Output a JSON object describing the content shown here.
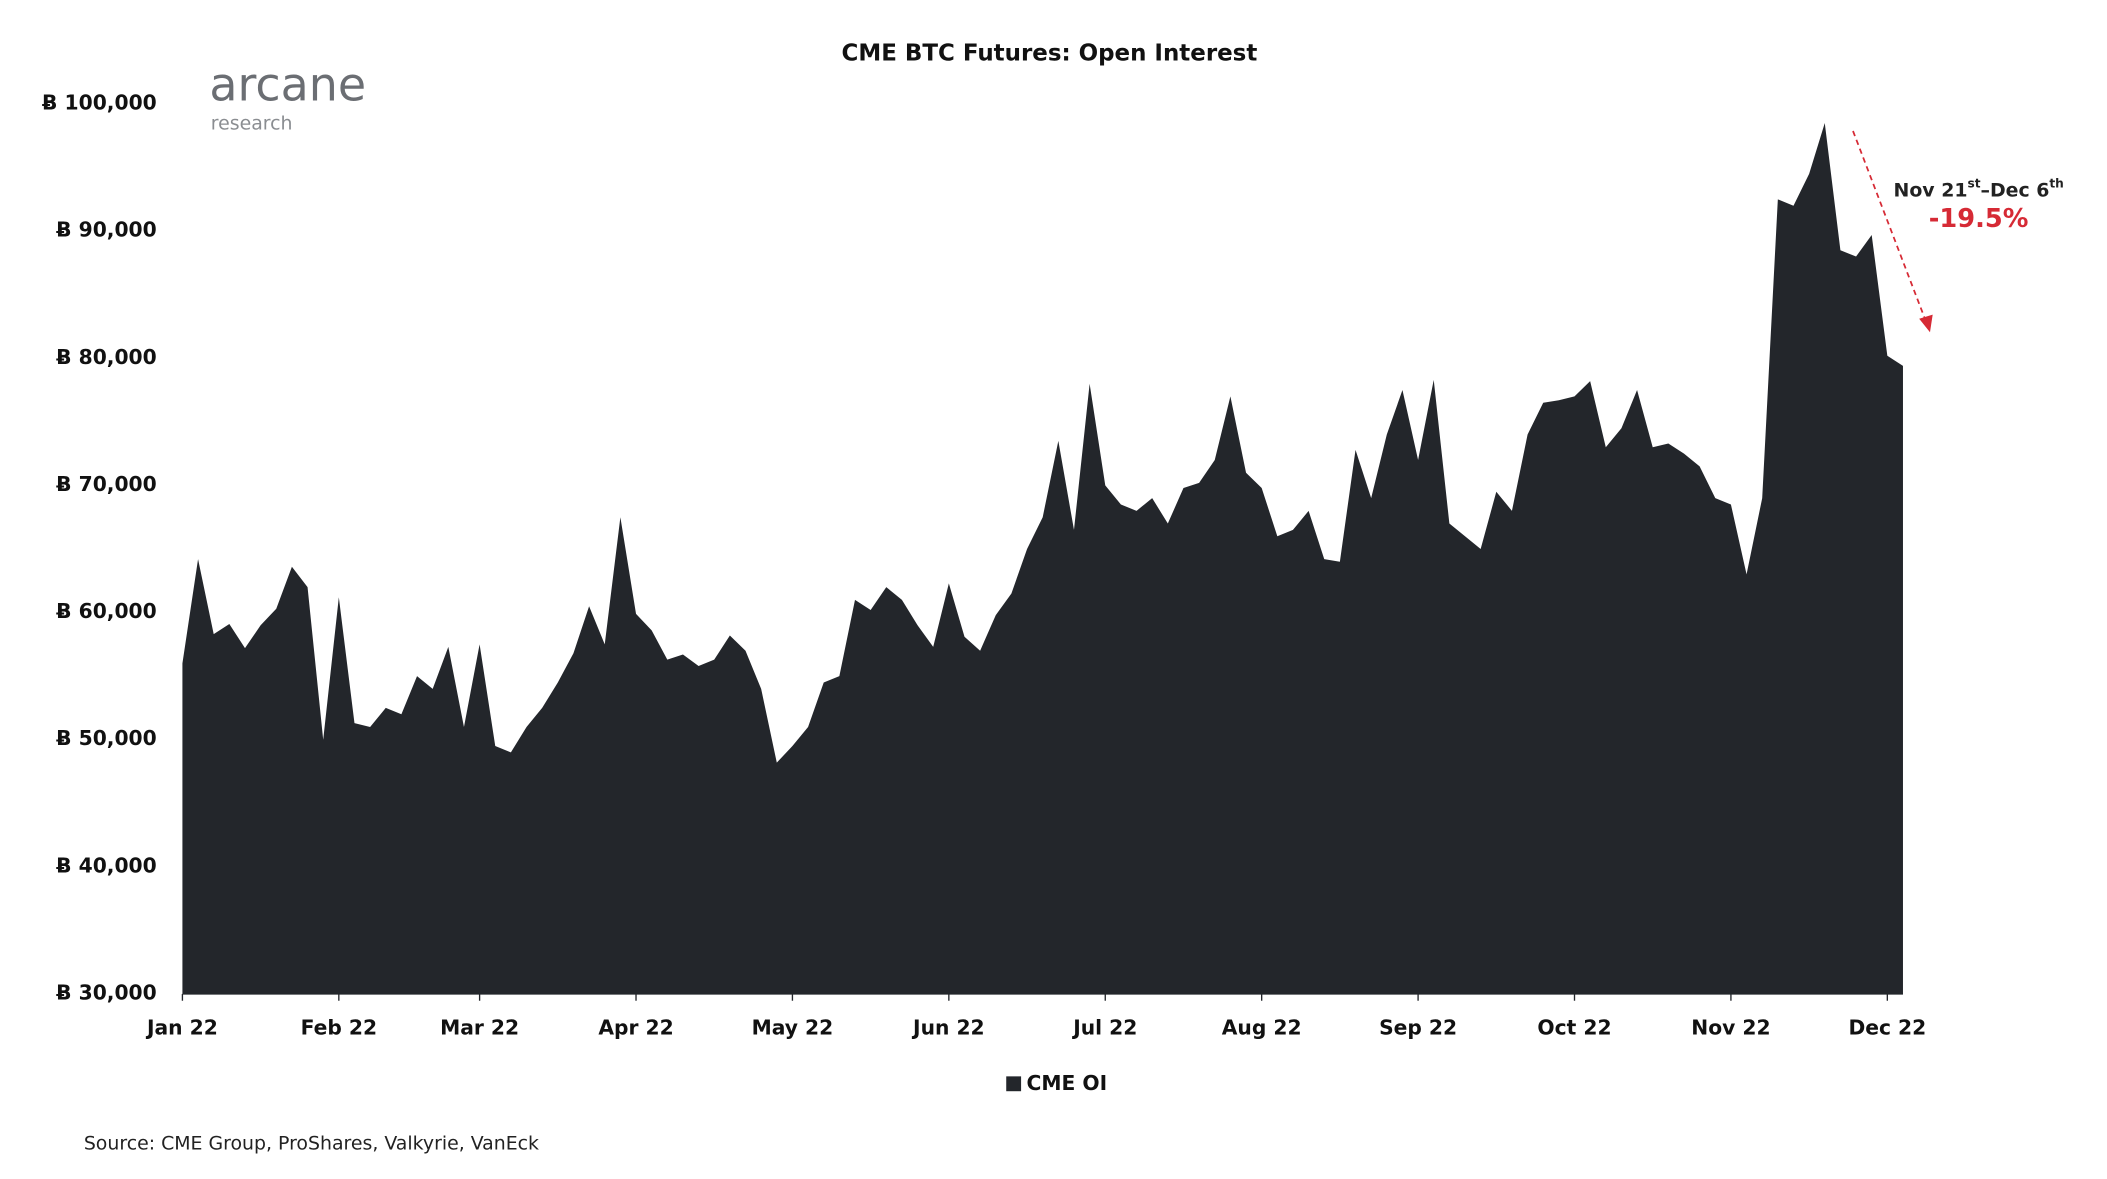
{
  "chart_data": {
    "type": "area",
    "title": "CME BTC Futures: Open Interest",
    "logo": {
      "name": "arcane",
      "sub": "research"
    },
    "source": "Source: CME Group, ProShares, Valkyrie, VanEck",
    "annotation": {
      "parts": [
        "Nov 21",
        "st",
        "–Dec 6",
        "th"
      ],
      "change": "-19.5%",
      "color": "#d62a35"
    },
    "categories": [
      "Jan 22",
      null,
      null,
      null,
      null,
      null,
      null,
      null,
      null,
      null,
      "Feb 22",
      null,
      null,
      null,
      null,
      null,
      null,
      null,
      null,
      "Mar 22",
      null,
      null,
      null,
      null,
      null,
      null,
      null,
      null,
      null,
      "Apr 22",
      null,
      null,
      null,
      null,
      null,
      null,
      null,
      null,
      null,
      "May 22",
      null,
      null,
      null,
      null,
      null,
      null,
      null,
      null,
      null,
      "Jun 22",
      null,
      null,
      null,
      null,
      null,
      null,
      null,
      null,
      null,
      "Jul 22",
      null,
      null,
      null,
      null,
      null,
      null,
      null,
      null,
      null,
      "Aug 22",
      null,
      null,
      null,
      null,
      null,
      null,
      null,
      null,
      null,
      "Sep 22",
      null,
      null,
      null,
      null,
      null,
      null,
      null,
      null,
      null,
      "Oct 22",
      null,
      null,
      null,
      null,
      null,
      null,
      null,
      null,
      null,
      "Nov 22",
      null,
      null,
      null,
      null,
      null,
      null,
      null,
      null,
      null,
      "Dec 22",
      null
    ],
    "series": [
      {
        "name": "CME OI",
        "color": "#23262b",
        "values": [
          56000,
          64200,
          58300,
          59100,
          57200,
          59000,
          60300,
          63600,
          62000,
          50000,
          61200,
          51300,
          51000,
          52500,
          52000,
          55000,
          54000,
          57300,
          51000,
          57500,
          49500,
          49000,
          51000,
          52500,
          54500,
          56800,
          60500,
          57500,
          67500,
          59900,
          58600,
          56300,
          56700,
          55800,
          56300,
          58200,
          57000,
          54000,
          48200,
          49500,
          51000,
          54500,
          55000,
          61000,
          60200,
          62000,
          61000,
          59000,
          57300,
          62300,
          58100,
          57000,
          59800,
          61500,
          65000,
          67500,
          73500,
          66500,
          78000,
          70000,
          68500,
          68000,
          69000,
          67000,
          69800,
          70200,
          72000,
          77000,
          71000,
          69800,
          66000,
          66500,
          68000,
          64200,
          64000,
          72800,
          69000,
          74000,
          77500,
          72000,
          78300,
          67000,
          66000,
          65000,
          69500,
          68000,
          74000,
          76500,
          76700,
          77000,
          78200,
          73000,
          74500,
          77500,
          73000,
          73300,
          72500,
          71500,
          69000,
          68500,
          63000,
          69000,
          92500,
          92000,
          94500,
          98500,
          88500,
          88000,
          89700,
          80200,
          79400
        ]
      }
    ],
    "ylim": [
      30000,
      100000
    ],
    "yticks": [
      {
        "value": 30000,
        "label": "Ƀ 30,000"
      },
      {
        "value": 40000,
        "label": "Ƀ 40,000"
      },
      {
        "value": 50000,
        "label": "Ƀ 50,000"
      },
      {
        "value": 60000,
        "label": "Ƀ 60,000"
      },
      {
        "value": 70000,
        "label": "Ƀ 70,000"
      },
      {
        "value": 80000,
        "label": "Ƀ 80,000"
      },
      {
        "value": 90000,
        "label": "Ƀ 90,000"
      },
      {
        "value": 100000,
        "label": "Ƀ 100,000"
      }
    ],
    "legend": "bottom"
  }
}
